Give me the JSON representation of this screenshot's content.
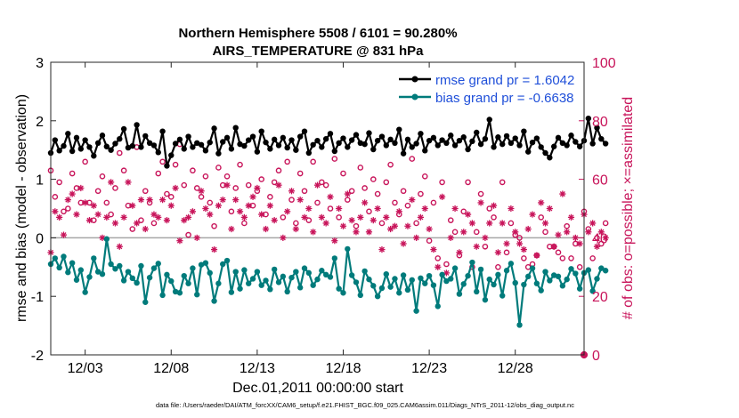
{
  "chart_data": {
    "type": "line",
    "title": "Northern Hemisphere 5508 / 6101 = 90.280%",
    "subtitle": "AIRS_TEMPERATURE @ 831 hPa",
    "xlabel": "Dec.01,2011 00:00:00 start",
    "ylabel": "rmse and bias (model - observation)",
    "y2label": "# of obs: o=possible; ×=assimilated",
    "xlim": [
      1.0,
      32.0
    ],
    "ylim": [
      -2,
      3
    ],
    "y2lim": [
      0,
      100
    ],
    "x_ticks": [
      {
        "value": 3,
        "label": "12/03"
      },
      {
        "value": 8,
        "label": "12/08"
      },
      {
        "value": 13,
        "label": "12/13"
      },
      {
        "value": 18,
        "label": "12/18"
      },
      {
        "value": 23,
        "label": "12/23"
      },
      {
        "value": 28,
        "label": "12/28"
      }
    ],
    "y_ticks": [
      {
        "value": 3,
        "label": "3"
      },
      {
        "value": 2,
        "label": "2"
      },
      {
        "value": 1,
        "label": "1"
      },
      {
        "value": 0,
        "label": "0"
      },
      {
        "value": -1,
        "label": "-1"
      },
      {
        "value": -2,
        "label": "-2"
      }
    ],
    "y2_ticks": [
      {
        "value": 100,
        "label": "100"
      },
      {
        "value": 80,
        "label": "80"
      },
      {
        "value": 60,
        "label": "60"
      },
      {
        "value": 40,
        "label": "40"
      },
      {
        "value": 20,
        "label": "20"
      },
      {
        "value": 0,
        "label": "0"
      }
    ],
    "zero_line": 0,
    "legend_position": "top-right",
    "series": [
      {
        "name": "rmse",
        "legend": "rmse grand pr = 1.6042",
        "color": "#000000",
        "axis": "left",
        "marker": "filled-circle",
        "x_start": 1.0,
        "x_step": 0.25,
        "values": [
          1.45,
          1.67,
          1.49,
          1.57,
          1.78,
          1.48,
          1.71,
          1.52,
          1.67,
          1.55,
          1.4,
          1.62,
          1.75,
          1.56,
          1.5,
          1.61,
          1.69,
          1.86,
          1.54,
          1.57,
          1.93,
          1.55,
          1.74,
          1.62,
          1.58,
          1.46,
          1.82,
          1.23,
          1.41,
          1.61,
          1.68,
          1.52,
          1.73,
          1.55,
          1.62,
          1.59,
          1.49,
          1.63,
          1.87,
          1.44,
          1.64,
          1.71,
          1.52,
          1.88,
          1.6,
          1.57,
          1.67,
          1.73,
          1.47,
          1.82,
          1.63,
          1.52,
          1.68,
          1.58,
          1.71,
          1.54,
          1.67,
          1.5,
          1.73,
          1.82,
          1.45,
          1.59,
          1.66,
          1.55,
          1.69,
          1.78,
          1.48,
          1.62,
          1.7,
          1.55,
          1.67,
          1.76,
          1.62,
          1.6,
          1.79,
          1.51,
          1.66,
          1.73,
          1.58,
          1.68,
          1.62,
          1.85,
          1.44,
          1.68,
          1.55,
          1.61,
          1.78,
          1.49,
          1.66,
          1.71,
          1.58,
          1.67,
          1.62,
          1.75,
          1.58,
          1.66,
          1.72,
          1.51,
          1.65,
          1.8,
          1.6,
          1.69,
          2.02,
          1.55,
          1.72,
          1.6,
          1.74,
          1.62,
          1.7,
          1.58,
          1.82,
          1.47,
          1.63,
          1.7,
          1.55,
          1.45,
          1.37,
          1.56,
          1.71,
          1.62,
          1.58,
          1.75,
          1.64,
          1.56,
          1.66,
          2.04,
          1.61,
          1.88,
          1.69,
          1.61
        ]
      },
      {
        "name": "bias",
        "legend": "bias grand pr = -0.6638",
        "color": "#007b7b",
        "axis": "left",
        "marker": "filled-circle",
        "x_start": 1.0,
        "x_step": 0.25,
        "values": [
          -0.45,
          -0.35,
          -0.51,
          -0.32,
          -0.59,
          -0.43,
          -0.72,
          -0.55,
          -0.93,
          -0.67,
          -0.35,
          -0.58,
          -0.62,
          -0.02,
          -0.45,
          -0.53,
          -0.48,
          -0.73,
          -0.58,
          -0.69,
          -0.77,
          -0.48,
          -1.1,
          -0.68,
          -0.52,
          -0.44,
          -0.98,
          -0.63,
          -0.74,
          -0.92,
          -0.94,
          -0.65,
          -0.78,
          -0.52,
          -0.97,
          -0.46,
          -0.43,
          -0.6,
          -1.08,
          -0.78,
          -0.45,
          -0.39,
          -0.93,
          -0.58,
          -0.87,
          -0.55,
          -0.78,
          -0.7,
          -0.58,
          -0.81,
          -0.73,
          -0.88,
          -0.54,
          -0.76,
          -0.66,
          -0.92,
          -0.68,
          -0.58,
          -0.85,
          -0.52,
          -0.6,
          -0.81,
          -0.71,
          -0.56,
          -0.63,
          -0.67,
          -0.35,
          -0.87,
          -0.94,
          -0.19,
          -0.64,
          -0.76,
          -0.98,
          -0.57,
          -0.71,
          -0.82,
          -1.0,
          -0.86,
          -0.62,
          -0.84,
          -0.7,
          -0.94,
          -0.64,
          -0.89,
          -0.72,
          -1.25,
          -0.69,
          -0.78,
          -0.65,
          -0.81,
          -1.17,
          -0.63,
          -0.74,
          -0.7,
          -0.52,
          -0.96,
          -0.79,
          -0.65,
          -0.42,
          -0.92,
          -0.54,
          -1.06,
          -0.71,
          -0.8,
          -0.63,
          -0.99,
          -0.56,
          -0.44,
          -0.77,
          -1.49,
          -0.8,
          -0.66,
          -0.52,
          -0.78,
          -0.9,
          -0.58,
          -0.73,
          -0.64,
          -0.66,
          -0.82,
          -0.71,
          -0.53,
          -0.61,
          -0.87,
          -0.6,
          -0.55,
          -0.91,
          -0.7,
          -0.52,
          -0.56
        ]
      },
      {
        "name": "obs possible",
        "color": "#c8145a",
        "axis": "right",
        "marker": "open-circle",
        "x_start": 1.0,
        "x_step": 0.25,
        "values": [
          63,
          54,
          59,
          49,
          50,
          62,
          57,
          52,
          66,
          52,
          46,
          56,
          61,
          52,
          48,
          57,
          69,
          63,
          51,
          43,
          71,
          46,
          56,
          52,
          45,
          62,
          66,
          55,
          54,
          65,
          72,
          58,
          41,
          63,
          57,
          54,
          61,
          52,
          44,
          64,
          58,
          61,
          49,
          57,
          65,
          45,
          58,
          51,
          56,
          60,
          48,
          54,
          59,
          63,
          47,
          66,
          53,
          45,
          62,
          56,
          46,
          66,
          52,
          59,
          58,
          50,
          67,
          47,
          62,
          53,
          56,
          44,
          64,
          57,
          49,
          60,
          55,
          45,
          59,
          65,
          52,
          48,
          56,
          51,
          67,
          45,
          55,
          61,
          39,
          52,
          33,
          59,
          31,
          46,
          42,
          34,
          49,
          59,
          30,
          42,
          55,
          37,
          50,
          47,
          30,
          59,
          35,
          45,
          41,
          40,
          33,
          30,
          31,
          34,
          47,
          42,
          37,
          37,
          35,
          33,
          44,
          33,
          38,
          30,
          49,
          43,
          33,
          40,
          38,
          45
        ]
      },
      {
        "name": "obs assimilated",
        "color": "#c8145a",
        "axis": "right",
        "marker": "asterisk",
        "x_start": 1.0,
        "x_step": 0.25,
        "values": [
          35,
          49,
          47,
          41,
          53,
          55,
          48,
          57,
          52,
          46,
          51,
          48,
          40,
          47,
          59,
          45,
          37,
          47,
          59,
          51,
          45,
          53,
          43,
          53,
          48,
          47,
          53,
          46,
          51,
          57,
          39,
          46,
          47,
          49,
          40,
          56,
          50,
          48,
          36,
          51,
          53,
          58,
          43,
          53,
          49,
          47,
          51,
          54,
          57,
          48,
          43,
          51,
          46,
          58,
          40,
          49,
          56,
          43,
          53,
          47,
          50,
          42,
          58,
          47,
          45,
          54,
          39,
          50,
          44,
          55,
          46,
          42,
          47,
          52,
          42,
          46,
          50,
          36,
          47,
          43,
          44,
          49,
          38,
          44,
          53,
          40,
          47,
          50,
          43,
          36,
          30,
          54,
          28,
          40,
          50,
          35,
          42,
          48,
          45,
          37,
          52,
          40,
          45,
          51,
          35,
          45,
          38,
          50,
          42,
          38,
          36,
          43,
          48,
          34,
          52,
          45,
          50,
          37,
          41,
          55,
          42,
          47,
          40,
          38,
          48,
          42,
          45,
          37,
          42,
          40
        ]
      }
    ],
    "footnote": "data file: /Users/raeder/DAI/ATM_forcXX/CAM6_setup/f.e21.FHIST_BGC.f09_025.CAM6assim.011/Diags_NTrS_2011-12/obs_diag_output.nc"
  }
}
